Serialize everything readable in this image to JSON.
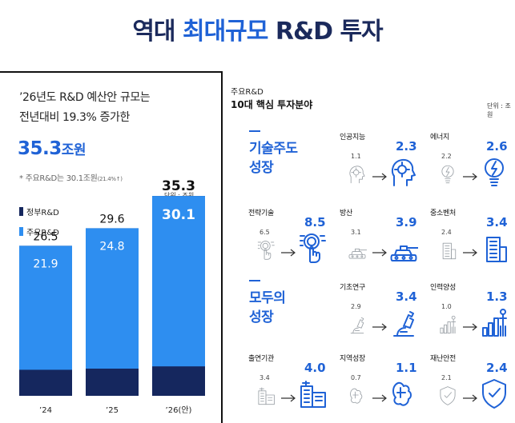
{
  "header": {
    "title_pre": "역대",
    "title_highlight": "최대규모",
    "title_post": "R&D 투자"
  },
  "left": {
    "headline_line1": "’26년도 R&D 예산안 규모는",
    "headline_line2": "전년대비 19.3% 증가한",
    "total_value": "35.3",
    "total_unit": "조원",
    "note_main": "* 주요R&D는 30.1조원",
    "note_small": "(21.4%↑)",
    "unit_label": "단위 : 조원",
    "legend": [
      {
        "label": "정부R&D",
        "color": "#15275e"
      },
      {
        "label": "주요R&D",
        "color": "#2e8ef0"
      }
    ]
  },
  "chart_data": {
    "type": "bar",
    "title": "",
    "categories": [
      "’24",
      "’25",
      "’26(안)"
    ],
    "series": [
      {
        "name": "정부R&D",
        "values": [
          26.5,
          29.6,
          35.3
        ]
      },
      {
        "name": "주요R&D",
        "values": [
          21.9,
          24.8,
          30.1
        ]
      }
    ],
    "value_labels_total": [
      "26.5",
      "29.6",
      "35.3"
    ],
    "value_labels_major": [
      "21.9",
      "24.8",
      "30.1"
    ],
    "stacked_overlay": true,
    "ylim": [
      0,
      37
    ],
    "grid": false,
    "legend_position": "top-left",
    "colors": {
      "total": "#15275e",
      "major": "#2e8ef0",
      "label_major": "#ffffff",
      "label_total": "#111111"
    }
  },
  "right": {
    "subtitle": "주요R&D",
    "title": "10대 핵심 투자분야",
    "unit_label": "단위 : 조원",
    "groups": [
      {
        "line1": "기술주도",
        "line2": "성장"
      },
      {
        "line1": "모두의",
        "line2": "성장"
      }
    ],
    "fields": [
      {
        "label": "인공지능",
        "prev": "1.1",
        "value": "2.3",
        "icon": "ai-head-icon"
      },
      {
        "label": "에너지",
        "prev": "2.2",
        "value": "2.6",
        "icon": "lightbulb-icon"
      },
      {
        "label": "전략기술",
        "prev": "6.5",
        "value": "8.5",
        "icon": "touch-tech-icon"
      },
      {
        "label": "방산",
        "prev": "3.1",
        "value": "3.9",
        "icon": "tank-icon"
      },
      {
        "label": "중소벤처",
        "prev": "2.4",
        "value": "3.4",
        "icon": "building-icon"
      },
      {
        "label": "기초연구",
        "prev": "2.9",
        "value": "3.4",
        "icon": "microscope-icon"
      },
      {
        "label": "인력양성",
        "prev": "1.0",
        "value": "1.3",
        "icon": "people-bars-icon"
      },
      {
        "label": "출연기관",
        "prev": "3.4",
        "value": "4.0",
        "icon": "institute-building-icon"
      },
      {
        "label": "지역성장",
        "prev": "0.7",
        "value": "1.1",
        "icon": "region-map-icon"
      },
      {
        "label": "재난안전",
        "prev": "2.1",
        "value": "2.4",
        "icon": "shield-icon"
      }
    ]
  }
}
